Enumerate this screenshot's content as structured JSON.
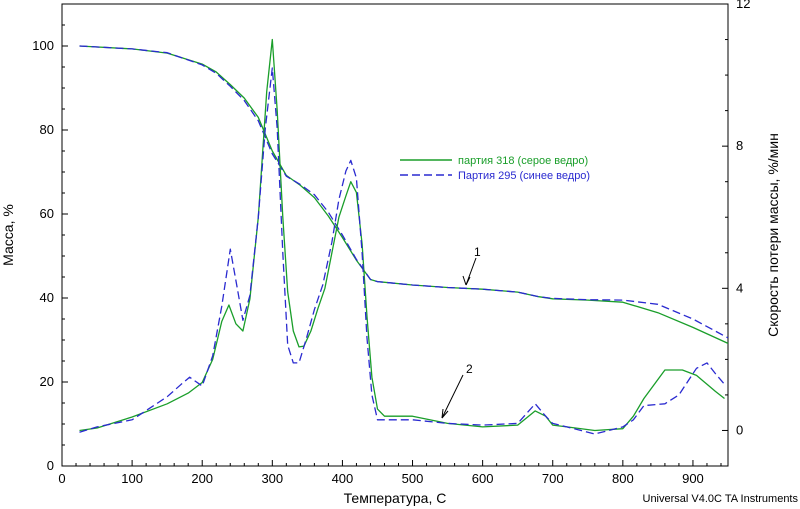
{
  "chart_data": {
    "type": "line",
    "xlabel": "Температура, С",
    "ylabel_left": "Масса, %",
    "ylabel_right": "Скорость потери массы, %/мин",
    "credit": "Universal V4.0C TA Instruments",
    "xlim": [
      0,
      950
    ],
    "ylim_left": [
      0,
      110
    ],
    "ylim_right": [
      -1,
      12
    ],
    "x_ticks": [
      0,
      100,
      200,
      300,
      400,
      500,
      600,
      700,
      800,
      900
    ],
    "y_ticks_left": [
      0,
      20,
      40,
      60,
      80,
      100
    ],
    "y_ticks_right": [
      0,
      4,
      8,
      12
    ],
    "grid": false,
    "legend_position": "center-right",
    "colors": {
      "green": "#1a9e2a",
      "blue": "#2a2ad0"
    },
    "annotations": [
      {
        "text": "1",
        "target": "mass curves",
        "at_x": 565
      },
      {
        "text": "2",
        "target": "rate curves",
        "at_x": 535
      }
    ],
    "series": [
      {
        "name": "партия 318 (серое ведро)",
        "kind": "mass",
        "axis": "left",
        "style": "solid",
        "color": "#1a9e2a",
        "x": [
          25,
          100,
          150,
          200,
          220,
          240,
          260,
          280,
          300,
          320,
          340,
          360,
          380,
          400,
          420,
          440,
          450,
          500,
          550,
          600,
          650,
          680,
          700,
          750,
          800,
          850,
          900,
          950
        ],
        "y": [
          100,
          99.3,
          98.3,
          95.7,
          93.8,
          90.8,
          87.6,
          83.0,
          75.0,
          69.2,
          66.8,
          63.9,
          59.5,
          54.4,
          49.0,
          44.4,
          43.9,
          43.1,
          42.5,
          42.1,
          41.4,
          40.3,
          39.8,
          39.5,
          39.0,
          36.5,
          33.0,
          29.2
        ]
      },
      {
        "name": "Партия 295 (синее ведро)",
        "kind": "mass",
        "axis": "left",
        "style": "dashed",
        "color": "#2a2ad0",
        "x": [
          25,
          100,
          150,
          200,
          220,
          240,
          260,
          280,
          300,
          320,
          340,
          360,
          380,
          400,
          420,
          440,
          450,
          500,
          550,
          600,
          650,
          680,
          700,
          750,
          800,
          850,
          900,
          950
        ],
        "y": [
          100,
          99.3,
          98.4,
          95.5,
          93.5,
          90.4,
          87.0,
          82.2,
          74.3,
          69.0,
          67.0,
          64.6,
          60.4,
          55.0,
          49.2,
          44.4,
          43.9,
          43.1,
          42.5,
          42.1,
          41.4,
          40.3,
          39.9,
          39.6,
          39.5,
          38.5,
          35.0,
          30.5
        ]
      },
      {
        "name": "партия 318 (серое ведро)",
        "kind": "rate",
        "axis": "right",
        "style": "solid",
        "color": "#1a9e2a",
        "x": [
          25,
          50,
          100,
          150,
          180,
          200,
          215,
          228,
          238,
          248,
          258,
          268,
          280,
          292,
          300,
          307,
          315,
          322,
          330,
          338,
          345,
          355,
          365,
          375,
          385,
          395,
          405,
          412,
          420,
          428,
          435,
          442,
          450,
          460,
          500,
          550,
          600,
          650,
          675,
          690,
          700,
          720,
          760,
          800,
          815,
          830,
          860,
          885,
          905,
          920,
          932,
          945
        ],
        "y": [
          0.0,
          0.07,
          0.38,
          0.75,
          1.05,
          1.35,
          2.0,
          3.07,
          3.53,
          3.0,
          2.8,
          3.7,
          6.0,
          9.53,
          11.0,
          9.0,
          6.0,
          3.9,
          2.8,
          2.35,
          2.37,
          2.8,
          3.43,
          4.0,
          5.0,
          6.0,
          6.6,
          7.0,
          6.7,
          5.25,
          3.2,
          1.5,
          0.6,
          0.4,
          0.4,
          0.2,
          0.1,
          0.15,
          0.55,
          0.4,
          0.15,
          0.1,
          0.0,
          0.05,
          0.4,
          0.9,
          1.7,
          1.7,
          1.55,
          1.3,
          1.1,
          0.9
        ]
      },
      {
        "name": "Партия 295 (синее ведро)",
        "kind": "rate",
        "axis": "right",
        "style": "dashed",
        "color": "#2a2ad0",
        "x": [
          25,
          50,
          100,
          150,
          170,
          182,
          200,
          215,
          228,
          240,
          250,
          258,
          268,
          280,
          290,
          300,
          307,
          315,
          322,
          330,
          338,
          348,
          360,
          372,
          385,
          395,
          405,
          412,
          420,
          428,
          435,
          442,
          450,
          460,
          500,
          550,
          600,
          650,
          675,
          690,
          700,
          720,
          760,
          800,
          815,
          830,
          860,
          880,
          905,
          920,
          932,
          945
        ],
        "y": [
          -0.05,
          0.1,
          0.3,
          0.95,
          1.3,
          1.5,
          1.25,
          2.1,
          3.5,
          5.1,
          4.0,
          3.1,
          3.8,
          6.0,
          8.5,
          10.2,
          8.5,
          5.0,
          2.4,
          1.9,
          1.9,
          2.55,
          3.4,
          4.1,
          5.3,
          6.5,
          7.3,
          7.6,
          7.1,
          5.0,
          2.6,
          1.0,
          0.3,
          0.3,
          0.3,
          0.2,
          0.15,
          0.2,
          0.75,
          0.4,
          0.2,
          0.1,
          -0.1,
          0.1,
          0.3,
          0.7,
          0.75,
          1.0,
          1.75,
          1.9,
          1.6,
          1.3
        ]
      }
    ]
  }
}
